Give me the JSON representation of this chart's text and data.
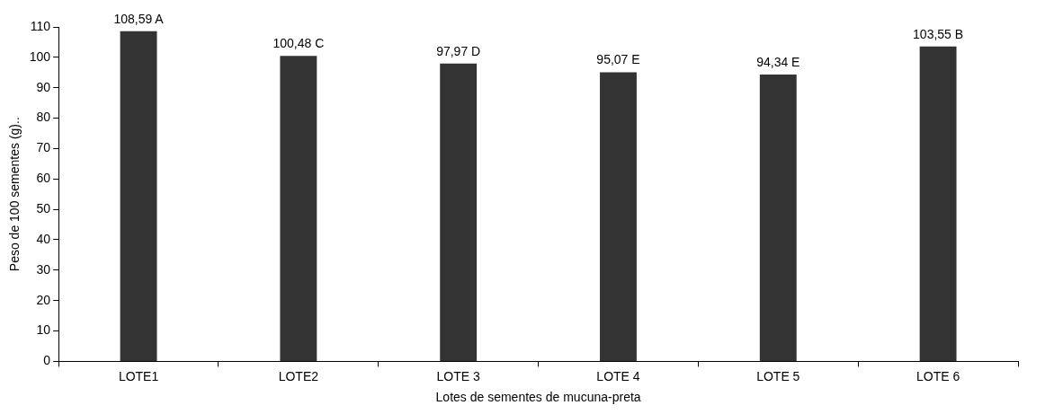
{
  "chart_data": {
    "type": "bar",
    "xlabel": "Lotes de sementes de mucuna-preta",
    "ylabel": "Peso de 100 sementes (g)..",
    "categories": [
      "LOTE1",
      "LOTE2",
      "LOTE 3",
      "LOTE 4",
      "LOTE 5",
      "LOTE 6"
    ],
    "values": [
      108.59,
      100.48,
      97.97,
      95.07,
      94.34,
      103.55
    ],
    "value_labels": [
      "108,59 A",
      "100,48 C",
      "97,97 D",
      "95,07 E",
      "94,34 E",
      "103,55 B"
    ],
    "color": "#333333",
    "ylim": [
      0,
      110
    ],
    "yticks": [
      0,
      10,
      20,
      30,
      40,
      50,
      60,
      70,
      80,
      90,
      100,
      110
    ],
    "legend": false
  }
}
